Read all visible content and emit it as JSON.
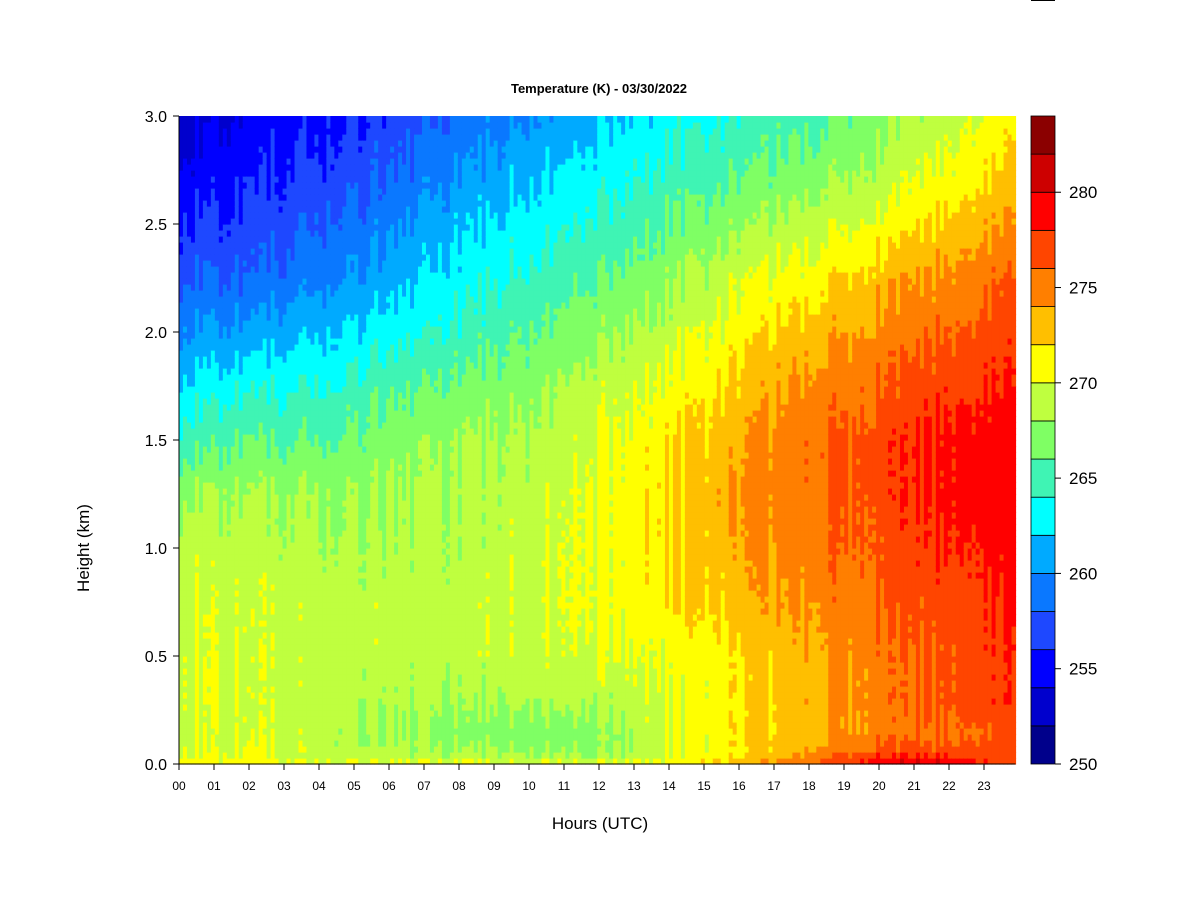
{
  "chart_data": {
    "type": "heatmap",
    "title": "Temperature (K) - 03/30/2022",
    "xlabel": "Hours (UTC)",
    "ylabel": "Height (km)",
    "x_ticks": [
      "00",
      "01",
      "02",
      "03",
      "04",
      "05",
      "06",
      "07",
      "08",
      "09",
      "10",
      "11",
      "12",
      "13",
      "14",
      "15",
      "16",
      "17",
      "18",
      "19",
      "20",
      "21",
      "22",
      "23"
    ],
    "x_range_hours": [
      0,
      23.9
    ],
    "y_ticks": [
      "0.0",
      "0.5",
      "1.0",
      "1.5",
      "2.0",
      "2.5",
      "3.0"
    ],
    "ylim_km": [
      0,
      3
    ],
    "colorbar": {
      "range": [
        250,
        284
      ],
      "step": 2,
      "tick_values": [
        250,
        255,
        260,
        265,
        270,
        275,
        280
      ],
      "tick_labels": [
        "250",
        "255",
        "260",
        "265",
        "270",
        "275",
        "280"
      ],
      "colors": [
        "#00008b",
        "#0000cd",
        "#0000ff",
        "#1e48ff",
        "#0a78ff",
        "#00aaff",
        "#00ffff",
        "#3ff4b4",
        "#7fff64",
        "#bfff3f",
        "#ffff00",
        "#ffbf00",
        "#ff7f00",
        "#ff4500",
        "#ff0000",
        "#cd0000",
        "#8b0000"
      ]
    },
    "grid_hours": [
      0,
      2,
      4,
      6,
      8,
      10,
      12,
      14,
      16,
      18,
      20,
      22,
      23.9
    ],
    "grid_heights_km": [
      0.0,
      0.05,
      0.15,
      0.3,
      0.5,
      0.75,
      1.0,
      1.25,
      1.5,
      1.75,
      2.0,
      2.25,
      2.5,
      2.75,
      3.0
    ],
    "temperature_K": [
      [
        271.5,
        271.0,
        270.5,
        270.5,
        270.5,
        270.5,
        270.5,
        271.0,
        273.0,
        276.0,
        280.0,
        280.5,
        276.5
      ],
      [
        270.0,
        270.0,
        269.0,
        268.5,
        268.0,
        268.0,
        267.5,
        269.5,
        271.5,
        274.0,
        277.0,
        277.0,
        276.0
      ],
      [
        269.5,
        269.5,
        269.0,
        268.0,
        267.0,
        267.0,
        267.5,
        269.5,
        271.5,
        273.0,
        275.0,
        275.5,
        276.5
      ],
      [
        270.0,
        269.5,
        269.0,
        268.5,
        268.0,
        268.5,
        268.5,
        270.0,
        271.5,
        273.5,
        275.0,
        276.5,
        277.5
      ],
      [
        270.0,
        269.5,
        269.0,
        269.0,
        269.0,
        269.5,
        270.0,
        270.5,
        271.5,
        273.5,
        275.0,
        276.5,
        277.5
      ],
      [
        269.5,
        269.5,
        269.0,
        269.0,
        269.0,
        269.5,
        270.5,
        271.5,
        273.0,
        274.5,
        276.0,
        277.0,
        278.0
      ],
      [
        269.0,
        269.0,
        268.5,
        268.5,
        268.5,
        269.5,
        270.5,
        272.0,
        273.5,
        275.0,
        276.5,
        278.0,
        278.5
      ],
      [
        268.0,
        268.0,
        268.0,
        268.0,
        268.5,
        269.0,
        270.5,
        272.0,
        274.0,
        275.5,
        277.0,
        278.5,
        279.0
      ],
      [
        265.0,
        266.0,
        266.0,
        267.0,
        268.0,
        268.5,
        270.0,
        271.5,
        273.5,
        275.5,
        277.0,
        278.5,
        279.0
      ],
      [
        262.5,
        263.5,
        264.0,
        265.5,
        266.5,
        267.5,
        269.0,
        270.5,
        272.5,
        274.5,
        276.0,
        277.5,
        278.0
      ],
      [
        260.0,
        260.5,
        262.0,
        263.0,
        264.5,
        266.0,
        267.5,
        269.0,
        271.0,
        273.0,
        274.5,
        276.0,
        277.0
      ],
      [
        258.0,
        258.0,
        259.5,
        261.0,
        263.0,
        264.5,
        266.0,
        267.5,
        269.5,
        271.0,
        273.0,
        274.5,
        276.0
      ],
      [
        256.0,
        256.5,
        258.0,
        259.5,
        261.5,
        263.0,
        264.5,
        266.0,
        267.5,
        269.0,
        270.5,
        272.5,
        274.0
      ],
      [
        254.5,
        255.5,
        256.5,
        258.0,
        260.0,
        261.5,
        263.0,
        264.5,
        265.5,
        267.0,
        268.5,
        270.5,
        272.5
      ],
      [
        253.0,
        254.5,
        255.5,
        256.5,
        258.5,
        260.0,
        261.5,
        263.0,
        264.0,
        265.5,
        267.0,
        269.0,
        271.0
      ]
    ]
  }
}
